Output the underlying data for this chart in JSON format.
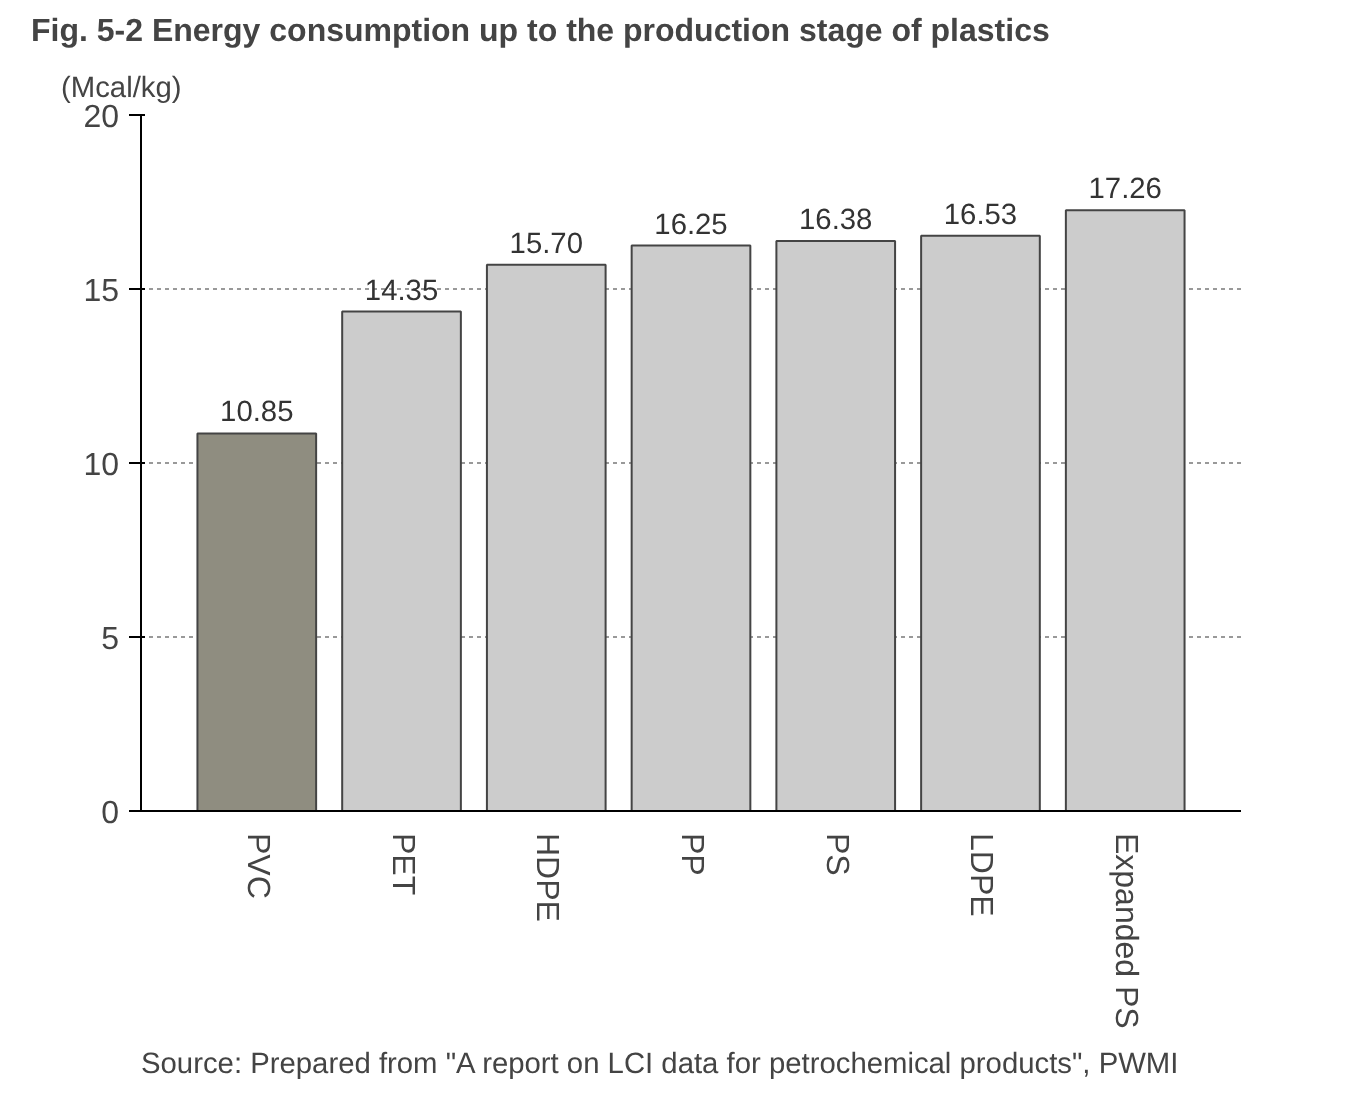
{
  "chart_data": {
    "type": "bar",
    "title": "Fig. 5-2  Energy consumption up to the production stage of plastics",
    "ylabel": "(Mcal/kg)",
    "categories": [
      "PVC",
      "PET",
      "HDPE",
      "PP",
      "PS",
      "LDPE",
      "Expanded PS"
    ],
    "values": [
      10.85,
      14.35,
      15.7,
      16.25,
      16.38,
      16.53,
      17.26
    ],
    "colors": [
      "#8f8d80",
      "#cccccc",
      "#cccccc",
      "#cccccc",
      "#cccccc",
      "#cccccc",
      "#cccccc"
    ],
    "value_labels": [
      "10.85",
      "14.35",
      "15.70",
      "16.25",
      "16.38",
      "16.53",
      "17.26"
    ],
    "ylim": [
      0,
      20
    ],
    "yticks": [
      0,
      5,
      10,
      15,
      20
    ],
    "grid": "y",
    "annotations": [
      "Source: Prepared from \"A report on LCI data for petrochemical products\", PWMI"
    ]
  }
}
